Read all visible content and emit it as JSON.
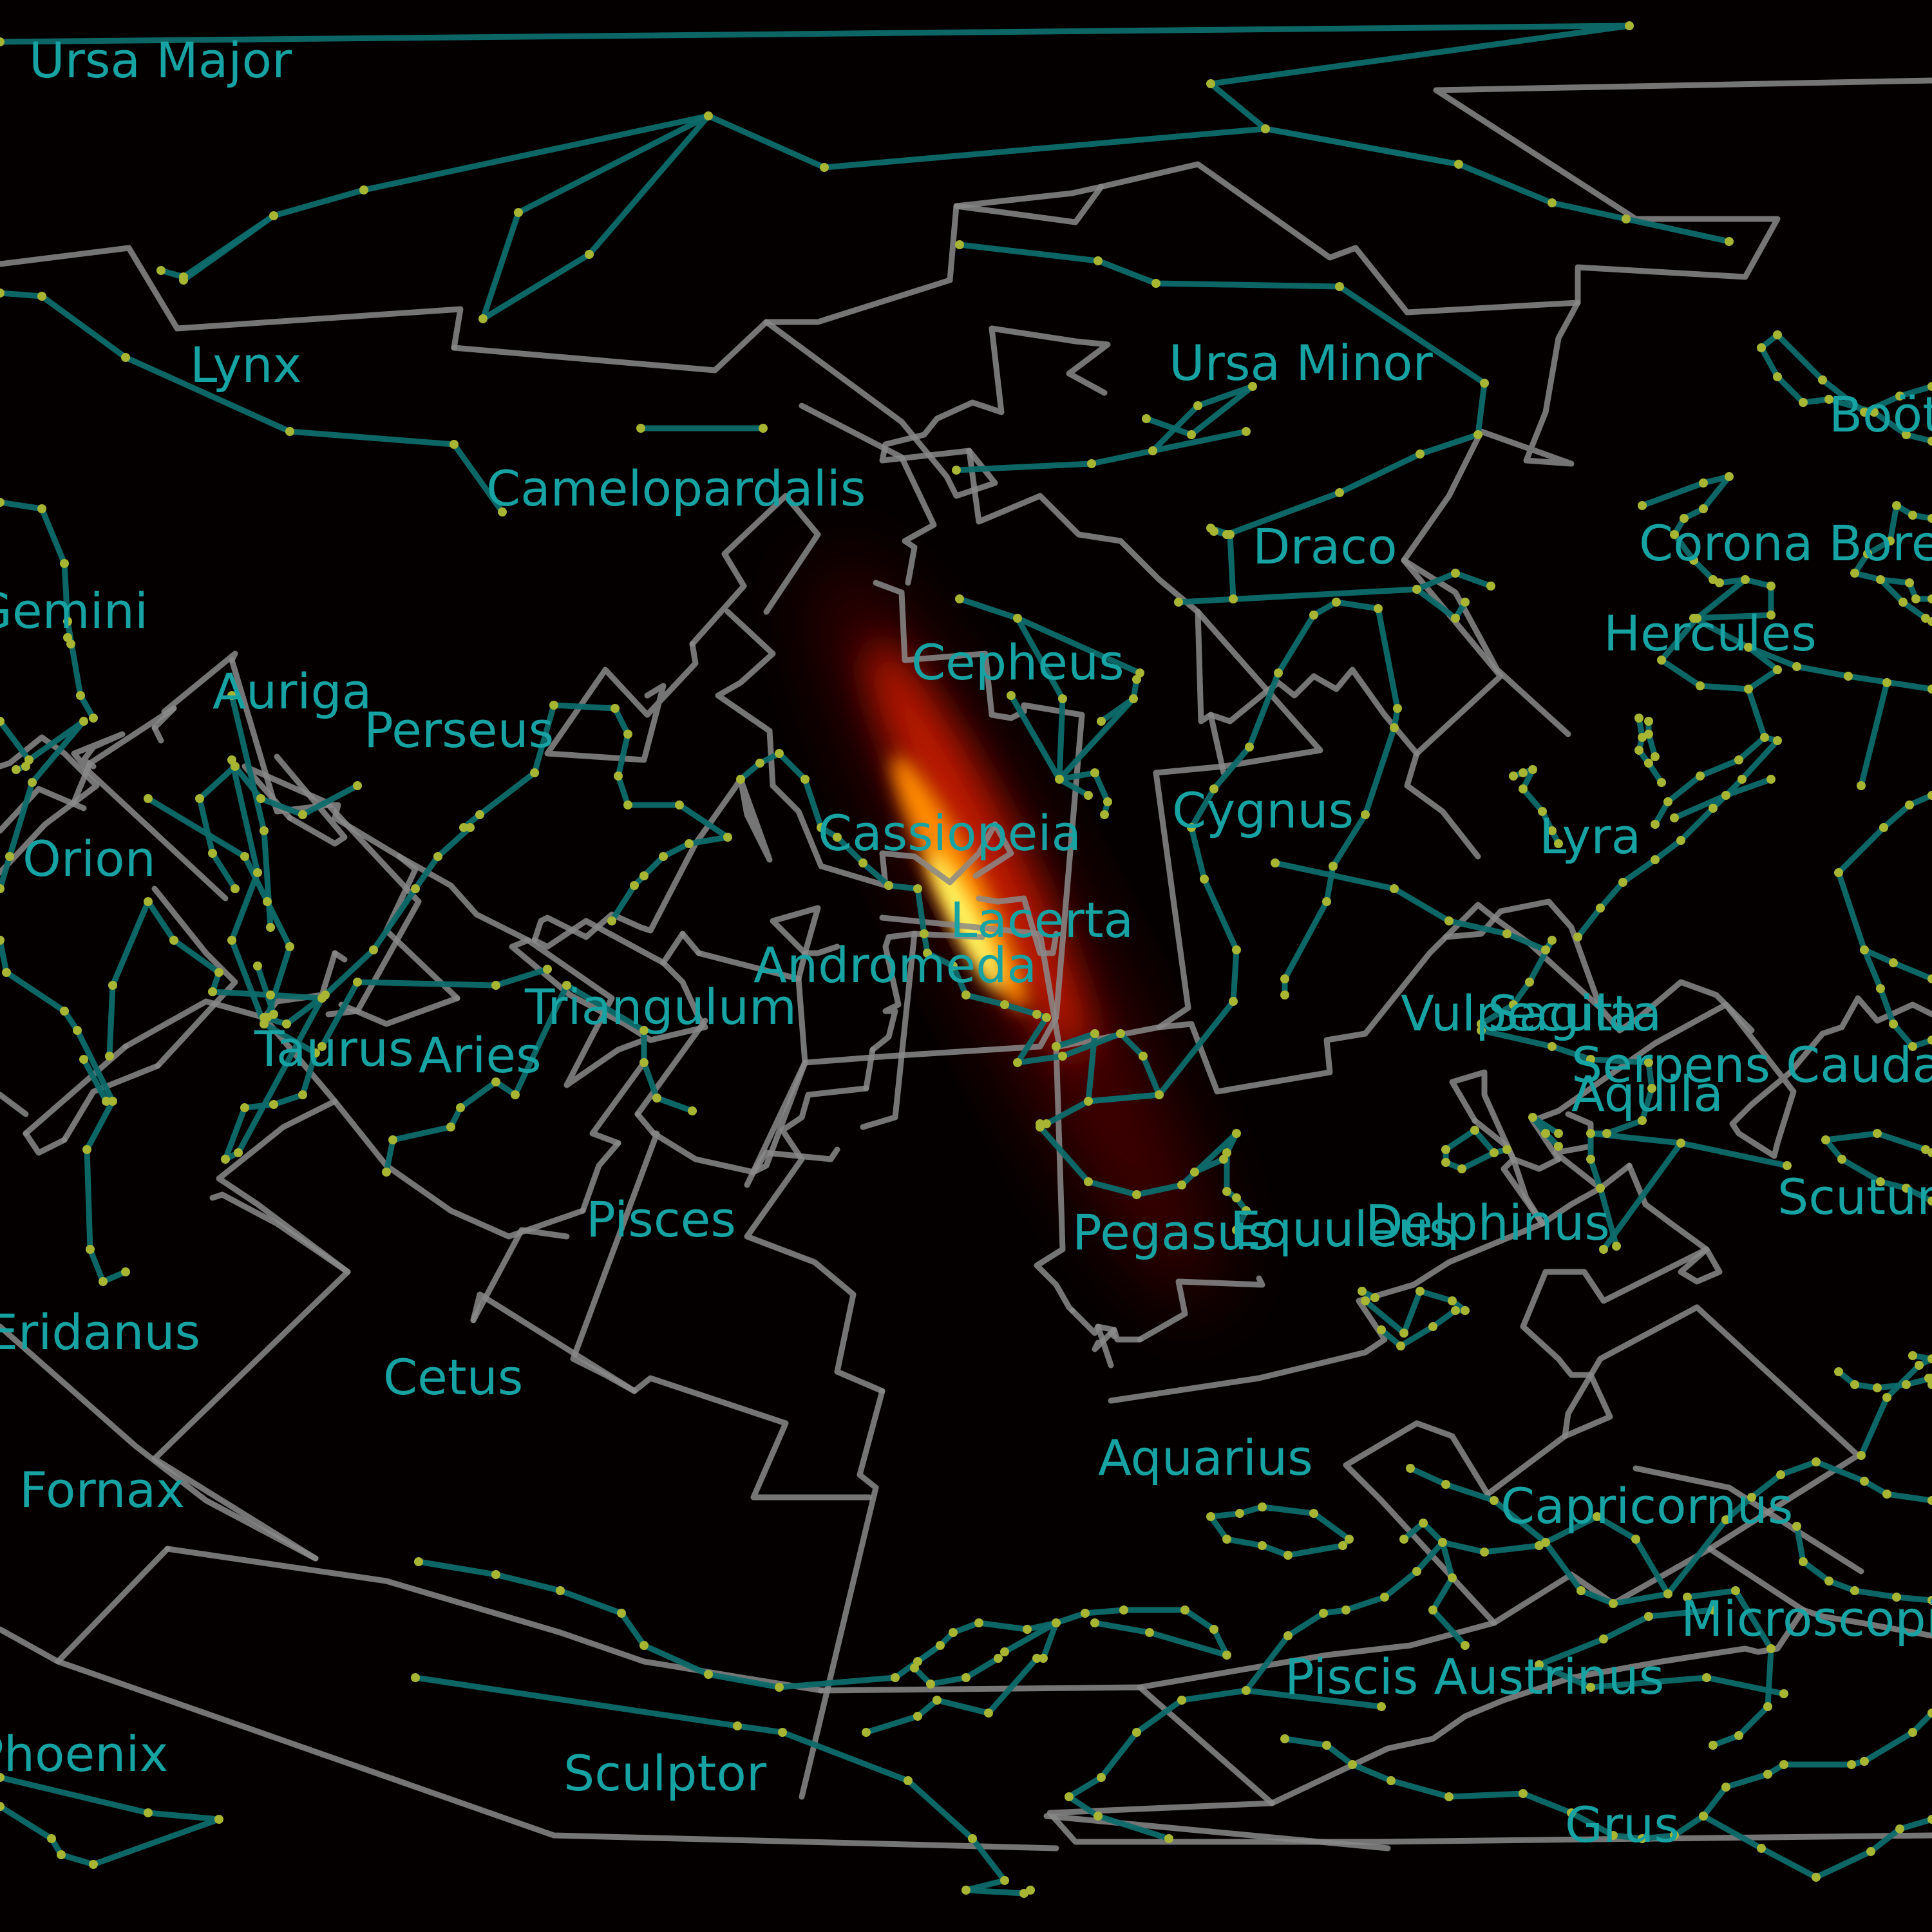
{
  "colors": {
    "background": "#050000",
    "boundary_line": "#8a8a8a",
    "figure_line": "#0e6b6b",
    "star_dot": "#a7b533",
    "label_text": "#17a3a3"
  },
  "constellations": [
    "Ursa Major",
    "Lynx",
    "Camelopardalis",
    "Ursa Minor",
    "Boötes",
    "Draco",
    "Corona Borealis",
    "Gemini",
    "Hercules",
    "Auriga",
    "Cepheus",
    "Perseus",
    "Cassiopeia",
    "Cygnus",
    "Lyra",
    "Orion",
    "Lacerta",
    "Andromeda",
    "Triangulum",
    "Vulpecula",
    "Sagitta",
    "Serpens Cauda",
    "Taurus",
    "Aries",
    "Aquila",
    "Scutum",
    "Pisces",
    "Pegasus",
    "Equuleus",
    "Delphinus",
    "Eridanus",
    "Cetus",
    "Aquarius",
    "Fornax",
    "Capricornus",
    "Microscopium",
    "Piscis Austrinus",
    "Phoenix",
    "Sculptor",
    "Grus"
  ]
}
